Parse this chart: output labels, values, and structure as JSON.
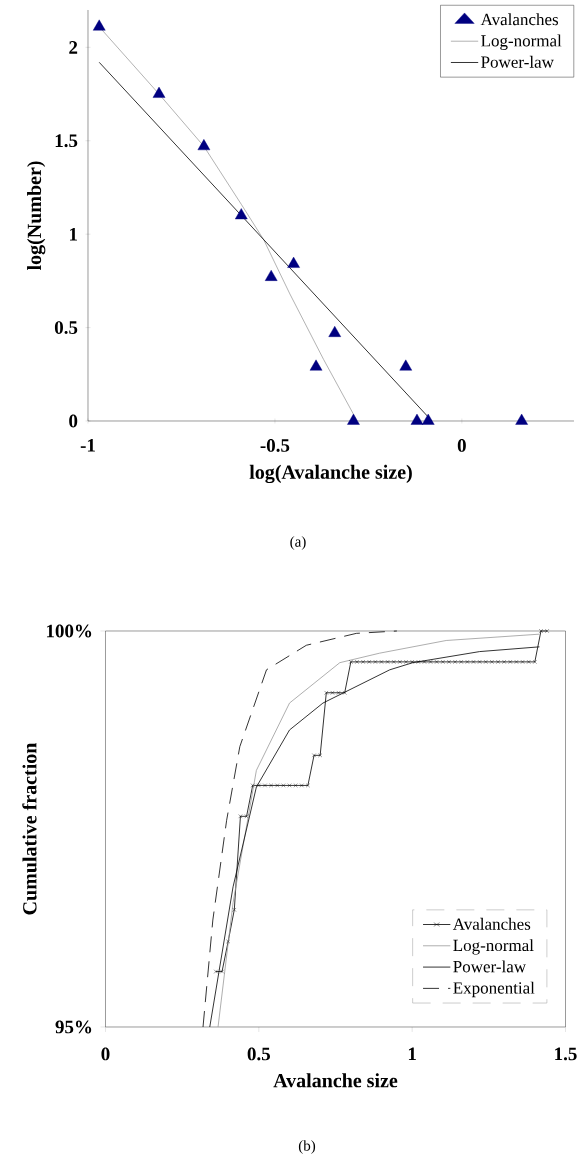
{
  "chart_data": [
    {
      "type": "scatter",
      "xlabel": "log(Avalanche size)",
      "ylabel": "log(Number)",
      "xlim": [
        -1,
        0.3
      ],
      "ylim": [
        0,
        2.2
      ],
      "xticks": [
        -1,
        -0.5,
        0
      ],
      "yticks": [
        0,
        0.5,
        1,
        1.5,
        2
      ],
      "legend": "top right",
      "annotations": [
        "(a)"
      ],
      "series": [
        {
          "name": "Avalanches",
          "marker": "triangle",
          "color": "#000080",
          "x": [
            -0.97,
            -0.81,
            -0.69,
            -0.59,
            -0.51,
            -0.45,
            -0.39,
            -0.34,
            -0.29,
            -0.15,
            -0.12,
            -0.09,
            0.16
          ],
          "values": [
            2.11,
            1.75,
            1.47,
            1.1,
            0.77,
            0.84,
            0.29,
            0.47,
            0,
            0.29,
            0,
            0,
            0
          ]
        },
        {
          "name": "Log-normal",
          "type": "line",
          "color": "#a0a0a0",
          "x": [
            -0.97,
            -0.81,
            -0.69,
            -0.59,
            -0.53,
            -0.46,
            -0.37,
            -0.28
          ],
          "values": [
            2.11,
            1.75,
            1.47,
            1.16,
            0.97,
            0.68,
            0.33,
            0
          ]
        },
        {
          "name": "Power-law",
          "type": "line",
          "color": "#000000",
          "x": [
            -0.97,
            -0.08
          ],
          "values": [
            1.92,
            0
          ]
        }
      ]
    },
    {
      "type": "line",
      "xlabel": "Avalanche size",
      "ylabel": "Cumulative fraction",
      "xlim": [
        0,
        1.5
      ],
      "ylim": [
        95,
        100
      ],
      "xticks": [
        0,
        0.5,
        1,
        1.5
      ],
      "yticks": [
        {
          "value": 95,
          "label": "95%"
        },
        {
          "value": 100,
          "label": "100%"
        }
      ],
      "legend": "bottom right",
      "annotations": [
        "(b)"
      ],
      "series": [
        {
          "name": "Avalanches",
          "marker": "cross",
          "color": "#000000",
          "x": [
            0.36,
            0.38,
            0.4,
            0.42,
            0.44,
            0.46,
            0.48,
            0.5,
            0.52,
            0.54,
            0.56,
            0.58,
            0.6,
            0.62,
            0.64,
            0.66,
            0.68,
            0.7,
            0.72,
            0.74,
            0.76,
            0.78,
            0.8,
            0.82,
            0.84,
            0.86,
            0.88,
            0.9,
            0.92,
            0.94,
            0.96,
            0.98,
            1.0,
            1.02,
            1.04,
            1.06,
            1.08,
            1.1,
            1.12,
            1.14,
            1.16,
            1.18,
            1.2,
            1.22,
            1.24,
            1.26,
            1.28,
            1.3,
            1.32,
            1.34,
            1.36,
            1.38,
            1.4,
            1.42,
            1.44
          ],
          "values": [
            95.7,
            95.7,
            96.08,
            96.48,
            97.66,
            97.66,
            98.05,
            98.05,
            98.05,
            98.05,
            98.05,
            98.05,
            98.05,
            98.05,
            98.05,
            98.05,
            98.43,
            98.43,
            99.22,
            99.22,
            99.22,
            99.22,
            99.61,
            99.61,
            99.61,
            99.61,
            99.61,
            99.61,
            99.61,
            99.61,
            99.61,
            99.61,
            99.61,
            99.61,
            99.61,
            99.61,
            99.61,
            99.61,
            99.61,
            99.61,
            99.61,
            99.61,
            99.61,
            99.61,
            99.61,
            99.61,
            99.61,
            99.61,
            99.61,
            99.61,
            99.61,
            99.61,
            99.61,
            100,
            100
          ]
        },
        {
          "name": "Log-normal",
          "color": "#999999",
          "x": [
            0.367,
            0.416,
            0.492,
            0.6,
            0.764,
            0.894,
            1.111,
            1.415
          ],
          "values": [
            95,
            96.57,
            98.24,
            99.09,
            99.6,
            99.72,
            99.88,
            99.96
          ]
        },
        {
          "name": "Power-law",
          "color": "#000000",
          "x": [
            0.34,
            0.416,
            0.492,
            0.6,
            0.709,
            0.927,
            1.002,
            1.22,
            1.415
          ],
          "values": [
            95,
            96.77,
            98.03,
            98.75,
            99.09,
            99.51,
            99.6,
            99.74,
            99.8
          ]
        },
        {
          "name": "Exponential",
          "line_style": "dashed",
          "color": "#000000",
          "x": [
            0.318,
            0.35,
            0.395,
            0.438,
            0.525,
            0.655,
            0.818,
            0.95
          ],
          "values": [
            95,
            96.35,
            97.61,
            98.54,
            99.51,
            99.82,
            99.97,
            100
          ]
        }
      ]
    }
  ]
}
